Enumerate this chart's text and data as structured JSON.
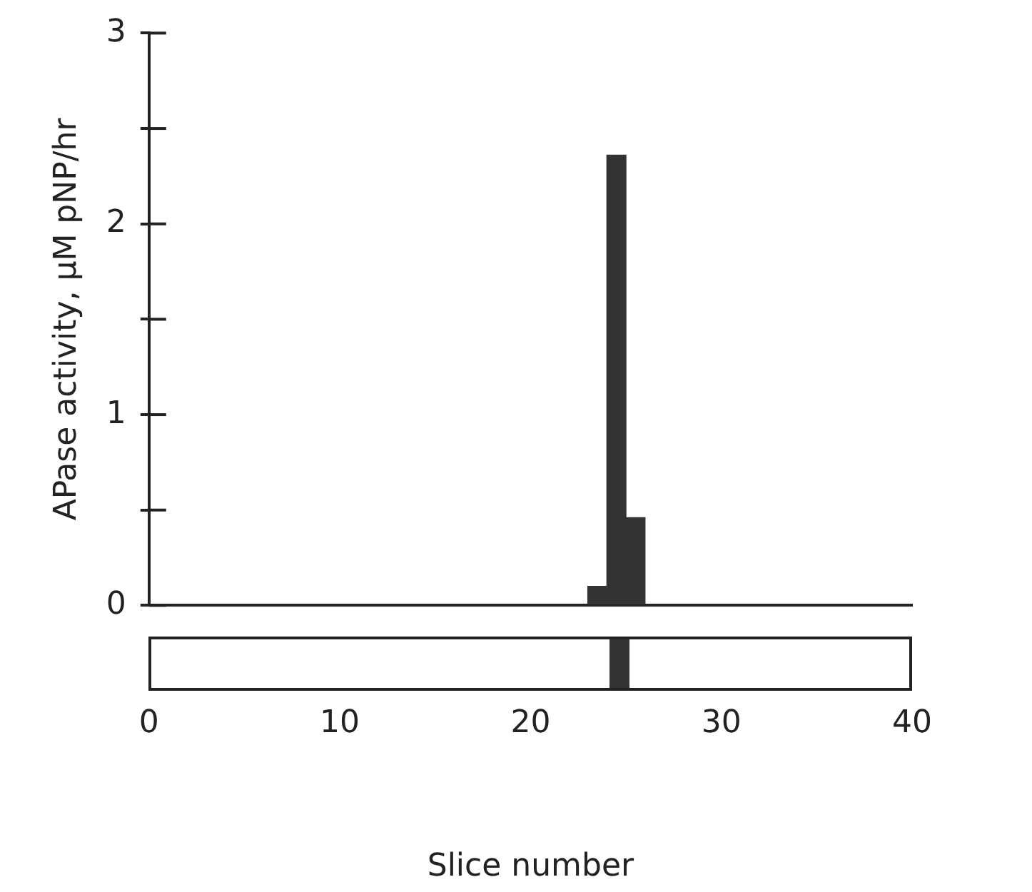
{
  "chart_data": {
    "type": "histogram",
    "xlabel": "Slice number",
    "ylabel": "APase activity, μM pNP/hr",
    "bins": [
      23,
      24,
      25,
      26
    ],
    "values": [
      0.1,
      2.36,
      0.46
    ],
    "color": "#333333",
    "xlim": [
      0,
      40
    ],
    "xticks": [
      0,
      10,
      20,
      30,
      40
    ],
    "ylim": [
      0,
      3
    ],
    "yticks": [
      0,
      {
        "value": 0.5,
        "label": null
      },
      1,
      {
        "value": 1.5,
        "label": null
      },
      2,
      {
        "value": 2.5,
        "label": null
      },
      3
    ],
    "grid": false,
    "legend": false
  }
}
